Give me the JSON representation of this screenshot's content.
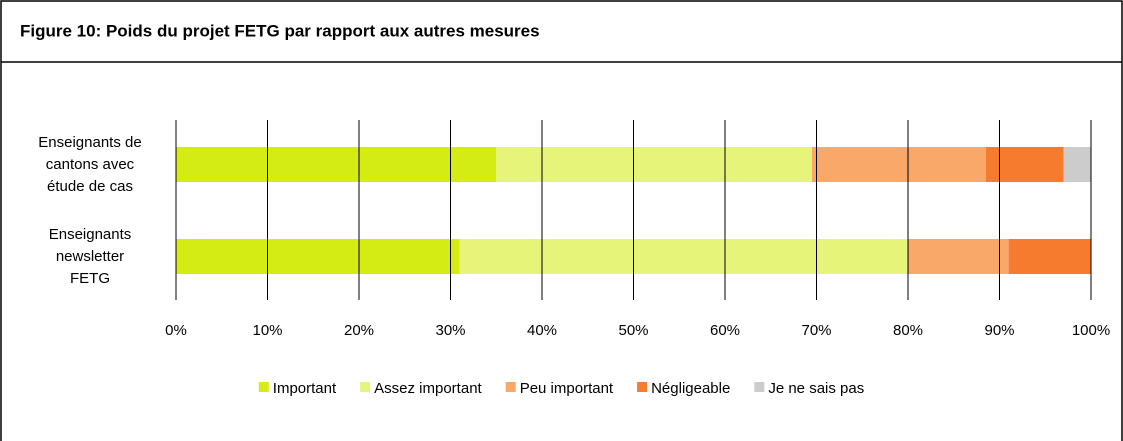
{
  "chart_data": {
    "type": "stacked_bar_horizontal",
    "title": "Figure 10: Poids du projet FETG par rapport aux autres mesures",
    "categories": [
      "Enseignants de\ncantons avec\nétude de cas",
      "Enseignants\nnewsletter\nFETG"
    ],
    "series": [
      {
        "name": "Important",
        "color": "#d4eb14",
        "values": [
          35,
          31
        ]
      },
      {
        "name": "Assez important",
        "color": "#e6f57a",
        "values": [
          34.5,
          49
        ]
      },
      {
        "name": "Peu important",
        "color": "#f9a86a",
        "values": [
          19,
          11
        ]
      },
      {
        "name": "Négligeable",
        "color": "#f77b2e",
        "values": [
          8.5,
          9
        ]
      },
      {
        "name": "Je ne sais pas",
        "color": "#cccccc",
        "values": [
          3,
          0
        ]
      }
    ],
    "xlim": [
      0,
      100
    ],
    "xticks": [
      {
        "value": 0,
        "label": "0%"
      },
      {
        "value": 10,
        "label": "10%"
      },
      {
        "value": 20,
        "label": "20%"
      },
      {
        "value": 30,
        "label": "30%"
      },
      {
        "value": 40,
        "label": "40%"
      },
      {
        "value": 50,
        "label": "50%"
      },
      {
        "value": 60,
        "label": "60%"
      },
      {
        "value": 70,
        "label": "70%"
      },
      {
        "value": 80,
        "label": "80%"
      },
      {
        "value": 90,
        "label": "90%"
      },
      {
        "value": 100,
        "label": "100%"
      }
    ],
    "grid": true,
    "legend": "bottom"
  }
}
